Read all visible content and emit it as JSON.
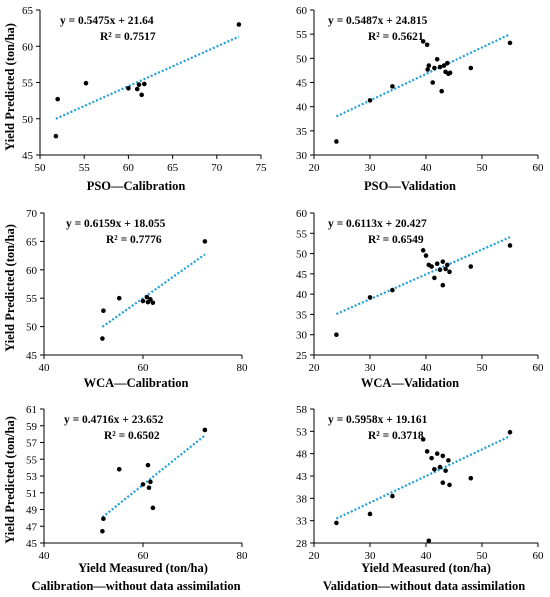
{
  "chart_data": [
    {
      "type": "scatter",
      "caption": "PSO—Calibration",
      "ylabel": "Yield Predicted (ton/ha)",
      "xlabel": "",
      "equation": "y = 0.5475x + 21.64",
      "r2": "R² = 0.7517",
      "xlim": [
        50,
        75
      ],
      "xticks": [
        50,
        55,
        60,
        65,
        70,
        75
      ],
      "ylim": [
        45,
        65
      ],
      "yticks": [
        45,
        50,
        55,
        60,
        65
      ],
      "trend": {
        "slope": 0.5475,
        "intercept": 21.64,
        "x_range": [
          51.8,
          72.5
        ]
      },
      "points": [
        [
          51.8,
          47.6
        ],
        [
          52.0,
          52.7
        ],
        [
          55.2,
          54.9
        ],
        [
          60.0,
          54.2
        ],
        [
          61.0,
          54.1
        ],
        [
          61.2,
          54.7
        ],
        [
          61.5,
          53.3
        ],
        [
          61.8,
          54.8
        ],
        [
          72.5,
          63.0
        ]
      ]
    },
    {
      "type": "scatter",
      "caption": "PSO—Validation",
      "ylabel": "",
      "xlabel": "",
      "equation": "y = 0.5487x + 24.815",
      "r2": "R² = 0.5621",
      "xlim": [
        20,
        60
      ],
      "xticks": [
        20,
        30,
        40,
        50,
        60
      ],
      "ylim": [
        30,
        60
      ],
      "yticks": [
        30,
        35,
        40,
        45,
        50,
        55,
        60
      ],
      "trend": {
        "slope": 0.5487,
        "intercept": 24.815,
        "x_range": [
          24,
          55
        ]
      },
      "points": [
        [
          24.0,
          32.8
        ],
        [
          30.0,
          41.3
        ],
        [
          34.0,
          44.2
        ],
        [
          39.5,
          53.5
        ],
        [
          40.2,
          52.8
        ],
        [
          40.3,
          47.7
        ],
        [
          40.5,
          48.5
        ],
        [
          41.2,
          45.0
        ],
        [
          41.5,
          48.0
        ],
        [
          42.0,
          49.8
        ],
        [
          42.5,
          48.2
        ],
        [
          42.8,
          43.2
        ],
        [
          43.2,
          48.5
        ],
        [
          43.5,
          47.2
        ],
        [
          43.8,
          49.0
        ],
        [
          44.0,
          46.8
        ],
        [
          44.3,
          47.0
        ],
        [
          48.0,
          48.0
        ],
        [
          55.0,
          53.2
        ]
      ]
    },
    {
      "type": "scatter",
      "caption": "WCA—Calibration",
      "ylabel": "Yield Predicted (ton/ha)",
      "xlabel": "",
      "equation": "y = 0.6159x + 18.055",
      "r2": "R² = 0.7776",
      "xlim": [
        40,
        80
      ],
      "xticks": [
        40,
        60,
        80
      ],
      "ylim": [
        45,
        70
      ],
      "yticks": [
        45,
        50,
        55,
        60,
        65,
        70
      ],
      "trend": {
        "slope": 0.6159,
        "intercept": 18.055,
        "x_range": [
          51.8,
          72.5
        ]
      },
      "points": [
        [
          51.8,
          47.9
        ],
        [
          52.0,
          52.8
        ],
        [
          55.2,
          55.0
        ],
        [
          60.0,
          54.5
        ],
        [
          60.8,
          55.2
        ],
        [
          61.0,
          54.3
        ],
        [
          61.5,
          54.8
        ],
        [
          62.0,
          54.2
        ],
        [
          72.5,
          65.0
        ]
      ]
    },
    {
      "type": "scatter",
      "caption": "WCA—Validation",
      "ylabel": "",
      "xlabel": "",
      "equation": "y = 0.6113x + 20.427",
      "r2": "R² = 0.6549",
      "xlim": [
        20,
        60
      ],
      "xticks": [
        20,
        30,
        40,
        50,
        60
      ],
      "ylim": [
        25,
        60
      ],
      "yticks": [
        25,
        30,
        35,
        40,
        45,
        50,
        55,
        60
      ],
      "trend": {
        "slope": 0.6113,
        "intercept": 20.427,
        "x_range": [
          24,
          55
        ]
      },
      "points": [
        [
          24.0,
          30.0
        ],
        [
          30.0,
          39.2
        ],
        [
          34.0,
          41.0
        ],
        [
          39.5,
          50.8
        ],
        [
          40.0,
          49.5
        ],
        [
          40.5,
          47.2
        ],
        [
          41.0,
          46.8
        ],
        [
          41.5,
          44.0
        ],
        [
          42.0,
          47.5
        ],
        [
          42.5,
          46.0
        ],
        [
          43.0,
          48.0
        ],
        [
          43.0,
          42.2
        ],
        [
          43.5,
          46.2
        ],
        [
          43.8,
          47.2
        ],
        [
          44.2,
          45.5
        ],
        [
          48.0,
          46.8
        ],
        [
          55.0,
          52.0
        ]
      ]
    },
    {
      "type": "scatter",
      "caption": "Calibration—without data assimilation",
      "ylabel": "Yield Predicted (ton/ha)",
      "xlabel": "Yield Measured (ton/ha)",
      "equation": "y = 0.4716x + 23.652",
      "r2": "R² = 0.6502",
      "xlim": [
        40,
        80
      ],
      "xticks": [
        40,
        60,
        80
      ],
      "ylim": [
        45,
        61
      ],
      "yticks": [
        45,
        47,
        49,
        51,
        53,
        55,
        57,
        59,
        61
      ],
      "trend": {
        "slope": 0.4716,
        "intercept": 23.652,
        "x_range": [
          51.8,
          72.5
        ]
      },
      "points": [
        [
          51.8,
          46.4
        ],
        [
          52.0,
          47.9
        ],
        [
          55.2,
          53.8
        ],
        [
          60.0,
          52.0
        ],
        [
          61.0,
          54.3
        ],
        [
          61.2,
          51.6
        ],
        [
          61.5,
          52.3
        ],
        [
          62.0,
          49.2
        ],
        [
          72.5,
          58.5
        ]
      ]
    },
    {
      "type": "scatter",
      "caption": "Validation—without data assimilation",
      "ylabel": "",
      "xlabel": "Yield Measured (ton/ha)",
      "equation": "y = 0.5958x + 19.161",
      "r2": "R² = 0.3718",
      "xlim": [
        20,
        60
      ],
      "xticks": [
        20,
        30,
        40,
        50,
        60
      ],
      "ylim": [
        28,
        58
      ],
      "yticks": [
        28,
        33,
        38,
        43,
        48,
        53,
        58
      ],
      "trend": {
        "slope": 0.5958,
        "intercept": 19.161,
        "x_range": [
          24,
          55
        ]
      },
      "points": [
        [
          24.0,
          32.5
        ],
        [
          30.0,
          34.5
        ],
        [
          34.0,
          38.5
        ],
        [
          39.5,
          51.2
        ],
        [
          40.2,
          48.5
        ],
        [
          40.5,
          28.5
        ],
        [
          41.0,
          47.0
        ],
        [
          41.5,
          44.5
        ],
        [
          42.0,
          48.0
        ],
        [
          42.5,
          45.0
        ],
        [
          43.0,
          47.5
        ],
        [
          43.0,
          41.5
        ],
        [
          43.5,
          44.2
        ],
        [
          44.0,
          46.5
        ],
        [
          44.2,
          41.0
        ],
        [
          48.0,
          42.5
        ],
        [
          55.0,
          52.8
        ]
      ]
    }
  ],
  "colors": {
    "trend": "#1f9fd8",
    "points": "#000000",
    "axis": "#000000"
  }
}
